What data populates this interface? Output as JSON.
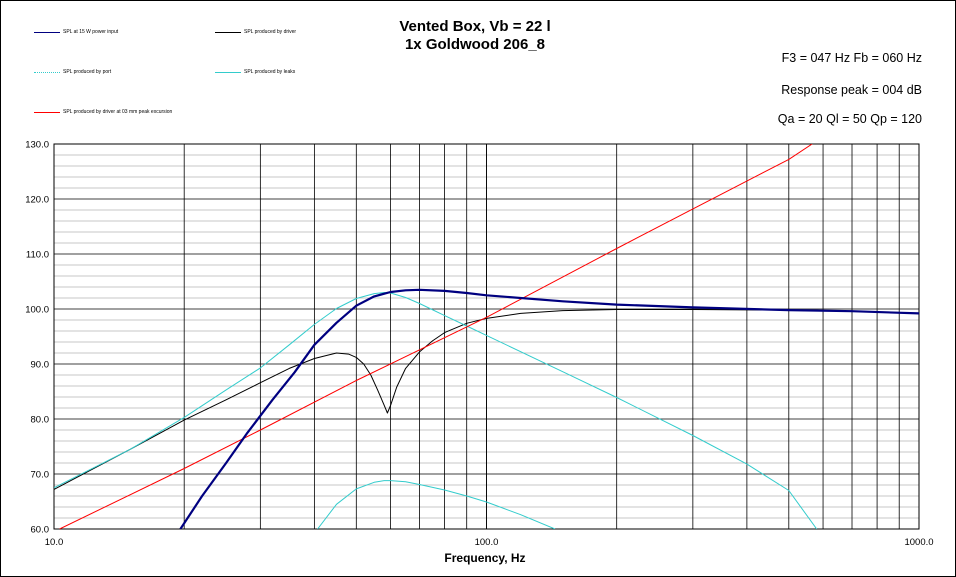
{
  "header": {
    "title_line1": "Vented Box, Vb = 22 l",
    "title_line2": "1x Goldwood 206_8"
  },
  "info": {
    "line1": "F3 = 047 Hz  Fb = 060 Hz",
    "line2": "Response peak = 004 dB",
    "line3": "Qa = 20  Ql = 50  Qp = 120"
  },
  "legend": [
    {
      "label": "SPL at 15 W power input",
      "color": "#000080"
    },
    {
      "label": "SPL produced by driver",
      "color": "#000000"
    },
    {
      "label": "SPL produced by port",
      "color": "#33cccc"
    },
    {
      "label": "SPL produced by leaks",
      "color": "#33cccc"
    },
    {
      "label": "SPL produced by driver at 03 mm peak excursion",
      "color": "#ff0000"
    }
  ],
  "chart_data": {
    "type": "line",
    "title": "Vented Box, Vb = 22 l",
    "subtitle": "1x Goldwood 206_8",
    "xlabel": "Frequency,  Hz",
    "ylabel": "",
    "xscale": "log",
    "xlim": [
      10,
      1000
    ],
    "ylim": [
      60,
      130
    ],
    "x_tick_labels": [
      "10.0",
      "100.0",
      "1000.0"
    ],
    "y_tick_labels": [
      "60.0",
      "70.0",
      "80.0",
      "90.0",
      "100.0",
      "110.0",
      "120.0",
      "130.0"
    ],
    "grid": true,
    "legend_position": "top-left",
    "series": [
      {
        "name": "SPL at 15 W power input",
        "color": "#000080",
        "x": [
          19.6,
          22,
          25,
          28,
          32,
          36,
          40,
          45,
          50,
          55,
          60,
          65,
          70,
          80,
          90,
          100,
          150,
          200,
          300,
          500,
          700,
          1000
        ],
        "y": [
          60.0,
          66.0,
          72.0,
          77.5,
          83.5,
          88.5,
          93.5,
          97.5,
          100.6,
          102.3,
          103.1,
          103.4,
          103.5,
          103.3,
          102.9,
          102.5,
          101.4,
          100.8,
          100.3,
          99.8,
          99.6,
          99.2
        ]
      },
      {
        "name": "SPL produced by driver",
        "color": "#000000",
        "x": [
          10,
          15,
          20,
          25,
          30,
          35,
          40,
          45,
          48,
          50,
          52,
          54,
          56,
          58,
          59,
          60,
          62,
          65,
          70,
          75,
          80,
          90,
          100,
          120,
          150,
          200,
          300,
          500,
          700,
          1000
        ],
        "y": [
          67.2,
          74.5,
          79.8,
          83.5,
          86.6,
          89.2,
          91.0,
          92.0,
          91.8,
          91.2,
          90.0,
          88.0,
          85.3,
          82.5,
          81.1,
          82.5,
          85.8,
          89.2,
          92.2,
          94.2,
          95.7,
          97.4,
          98.3,
          99.2,
          99.7,
          99.9,
          99.9,
          99.8,
          99.6,
          99.2
        ]
      },
      {
        "name": "SPL produced by port",
        "color": "#33cccc",
        "x": [
          10,
          15,
          20,
          25,
          30,
          35,
          40,
          45,
          50,
          55,
          58,
          60,
          65,
          70,
          80,
          90,
          100,
          150,
          200,
          300,
          400,
          500,
          580
        ],
        "y": [
          67.5,
          74.5,
          80.3,
          85.3,
          89.3,
          93.5,
          97.2,
          100.1,
          101.9,
          102.8,
          103.0,
          102.9,
          102.1,
          101.0,
          98.8,
          96.9,
          95.2,
          88.6,
          83.9,
          77.0,
          71.8,
          67.0,
          60.0
        ]
      },
      {
        "name": "SPL produced by leaks",
        "color": "#33cccc",
        "x": [
          40.7,
          45,
          50,
          55,
          58,
          60,
          65,
          70,
          80,
          90,
          100,
          120,
          144
        ],
        "y": [
          60.0,
          64.5,
          67.3,
          68.5,
          68.8,
          68.8,
          68.6,
          68.1,
          67.1,
          66.0,
          64.9,
          62.6,
          60.0
        ]
      },
      {
        "name": "SPL produced by driver at 03 mm peak excursion",
        "color": "#ff0000",
        "x": [
          10.3,
          20,
          30,
          50,
          100,
          200,
          300,
          500,
          566
        ],
        "y": [
          60.0,
          71.0,
          78.0,
          87.0,
          98.5,
          111.0,
          118.2,
          127.2,
          130.0
        ]
      }
    ]
  }
}
